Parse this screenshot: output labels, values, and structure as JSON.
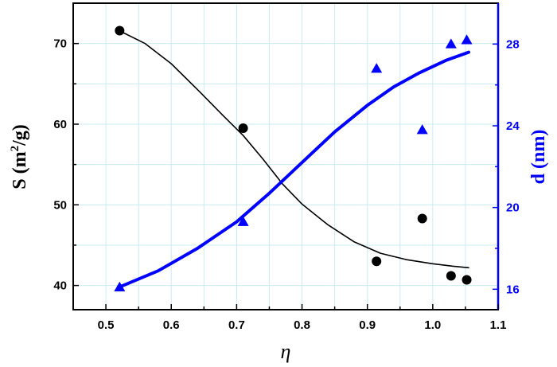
{
  "chart_data": {
    "type": "scatter",
    "xlabel": "η",
    "x_ticks": [
      "0.5",
      "0.6",
      "0.7",
      "0.8",
      "0.9",
      "1.0",
      "1.1"
    ],
    "xlim": [
      0.45,
      1.1
    ],
    "grid": true,
    "colors": {
      "left": "#000000",
      "right": "#0000ff",
      "grid": "#c8ecf4"
    },
    "left_axis": {
      "label_main": "S (m",
      "label_sup": "2",
      "label_end": "/g)",
      "ylim": [
        37,
        75
      ],
      "ticks": [
        "40",
        "50",
        "60",
        "70"
      ]
    },
    "right_axis": {
      "label": "d (nm)",
      "ylim": [
        15,
        30
      ],
      "ticks": [
        "16",
        "20",
        "24",
        "28"
      ]
    },
    "series": [
      {
        "axis": "left",
        "marker": "circle",
        "x": [
          0.521,
          0.71,
          0.914,
          0.984,
          1.028,
          1.052
        ],
        "y": [
          71.6,
          59.5,
          43.0,
          48.3,
          41.2,
          40.7
        ]
      },
      {
        "axis": "left",
        "style": "line",
        "x": [
          0.52,
          0.56,
          0.6,
          0.64,
          0.68,
          0.71,
          0.74,
          0.77,
          0.8,
          0.84,
          0.88,
          0.92,
          0.96,
          1.0,
          1.03,
          1.055
        ],
        "y": [
          71.6,
          70.0,
          67.5,
          64.3,
          61.0,
          58.6,
          55.7,
          52.6,
          50.1,
          47.5,
          45.4,
          44.0,
          43.2,
          42.7,
          42.4,
          42.2
        ]
      },
      {
        "axis": "right",
        "marker": "triangle",
        "x": [
          0.521,
          0.71,
          0.914,
          0.984,
          1.028,
          1.052
        ],
        "y": [
          16.1,
          19.3,
          26.8,
          23.8,
          28.0,
          28.2
        ]
      },
      {
        "axis": "right",
        "style": "line",
        "x": [
          0.52,
          0.58,
          0.64,
          0.7,
          0.75,
          0.8,
          0.85,
          0.9,
          0.94,
          0.98,
          1.02,
          1.055
        ],
        "y": [
          16.1,
          16.9,
          18.0,
          19.3,
          20.7,
          22.2,
          23.7,
          25.0,
          25.9,
          26.6,
          27.2,
          27.6
        ]
      }
    ]
  }
}
